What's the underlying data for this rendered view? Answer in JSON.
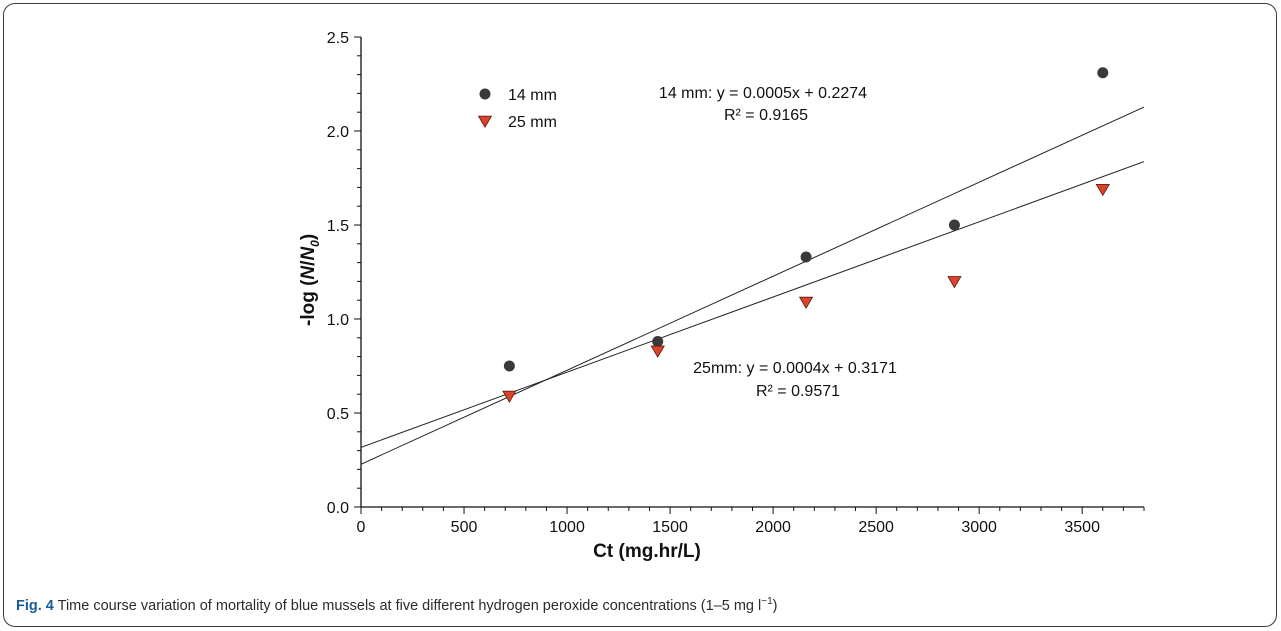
{
  "chart_data": {
    "type": "scatter",
    "xlabel": "Ct (mg.hr/L)",
    "ylabel_parts": {
      "prefix": "-log (",
      "ratio_N": "N",
      "ratio_sep": "/",
      "ratio_N0": "N",
      "ratio_sub": "0",
      "suffix": ")"
    },
    "xlim": [
      0,
      3800
    ],
    "ylim": [
      0,
      2.5
    ],
    "x_ticks": [
      0,
      500,
      1000,
      1500,
      2000,
      2500,
      3000,
      3500
    ],
    "y_ticks": [
      0.0,
      0.5,
      1.0,
      1.5,
      2.0,
      2.5
    ],
    "x_tick_labels": [
      "0",
      "500",
      "1000",
      "1500",
      "2000",
      "2500",
      "3000",
      "3500"
    ],
    "y_tick_labels": [
      "0.0",
      "0.5",
      "1.0",
      "1.5",
      "2.0",
      "2.5"
    ],
    "legend_position": "top-left",
    "series": [
      {
        "name": "14 mm",
        "marker": "circle",
        "color": "#3a3a3a",
        "points": [
          [
            720,
            0.75
          ],
          [
            1440,
            0.88
          ],
          [
            2160,
            1.33
          ],
          [
            2880,
            1.5
          ],
          [
            3600,
            2.31
          ]
        ],
        "fit": {
          "slope": 0.0005,
          "intercept": 0.2274,
          "equation": "14 mm: y = 0.0005x + 0.2274",
          "r2": "R² = 0.9165"
        }
      },
      {
        "name": "25 mm",
        "marker": "triangle-down",
        "color": "#d9442b",
        "points": [
          [
            720,
            0.59
          ],
          [
            1440,
            0.83
          ],
          [
            2160,
            1.09
          ],
          [
            2880,
            1.2
          ],
          [
            3600,
            1.69
          ]
        ],
        "fit": {
          "slope": 0.0004,
          "intercept": 0.3171,
          "equation": "25mm: y = 0.0004x + 0.3171",
          "r2": "R² = 0.9571"
        }
      }
    ]
  },
  "caption": {
    "lead": "Fig. 4",
    "text": " Time course variation of mortality of blue mussels at five different hydrogen peroxide concentrations (1–5 mg l",
    "sup": "−1",
    "tail": ")"
  }
}
